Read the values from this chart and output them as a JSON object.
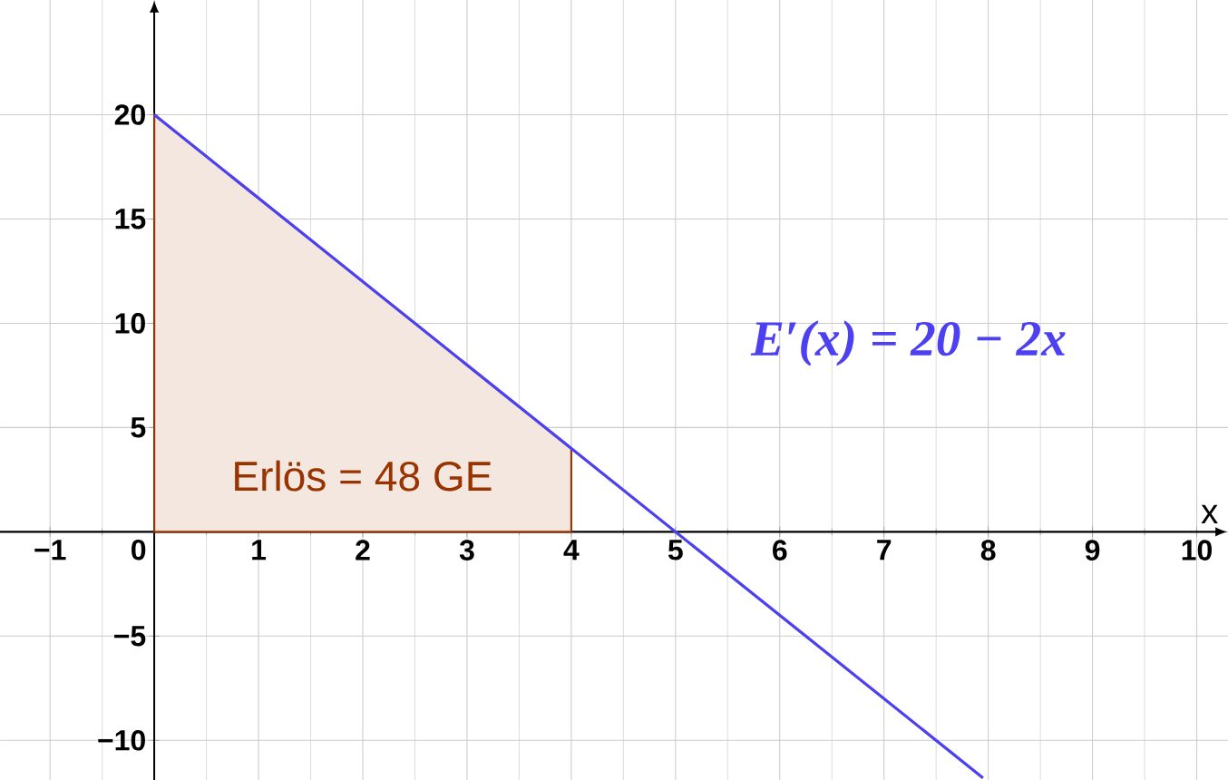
{
  "chart_data": {
    "type": "line",
    "xlabel": "x",
    "xlim": [
      -1.48,
      10.3
    ],
    "ylim": [
      -11.9,
      25.5
    ],
    "xticks": [
      {
        "value": -1,
        "label": "−1"
      },
      0,
      1,
      2,
      3,
      4,
      5,
      6,
      7,
      8,
      9,
      10
    ],
    "yticks": [
      {
        "value": -10,
        "label": "−10"
      },
      {
        "value": -5,
        "label": "−5"
      },
      5,
      10,
      15,
      20
    ],
    "grid": true,
    "marker": "none",
    "series": [
      {
        "type": "area",
        "color": "#993300",
        "x": [
          0,
          4
        ],
        "values": [
          20,
          4
        ]
      },
      {
        "color": "#4c40f0",
        "x": [
          0,
          7.95
        ],
        "values": [
          20,
          -11.8
        ]
      }
    ],
    "annotations": [
      "Erlös = 48 GE",
      "E′(x) = 20 − 2x"
    ]
  }
}
